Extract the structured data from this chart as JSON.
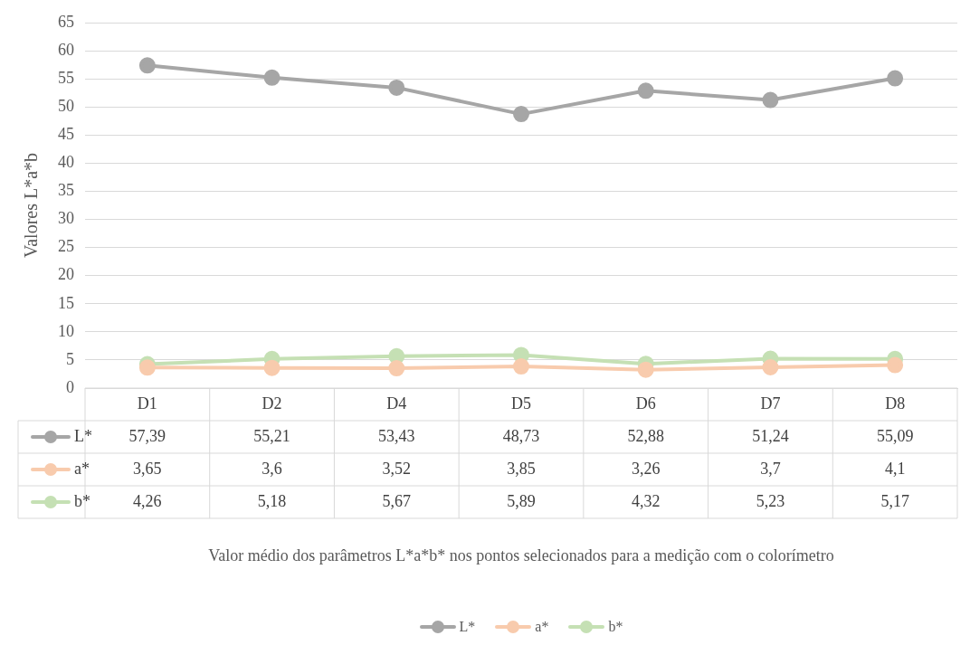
{
  "chart_data": {
    "type": "line",
    "ylabel": "Valores L*a*b",
    "annotations": [
      "Valor médio dos parâmetros L*a*b* nos pontos selecionados para a medição com o colorímetro"
    ],
    "categories": [
      "D1",
      "D2",
      "D4",
      "D5",
      "D6",
      "D7",
      "D8"
    ],
    "series": [
      {
        "name": "L*",
        "color": "#a6a6a6",
        "values": [
          57.39,
          55.21,
          53.43,
          48.73,
          52.88,
          51.24,
          55.09
        ],
        "value_labels": [
          "57,39",
          "55,21",
          "53,43",
          "48,73",
          "52,88",
          "51,24",
          "55,09"
        ]
      },
      {
        "name": "a*",
        "color": "#f8cbad",
        "values": [
          3.65,
          3.6,
          3.52,
          3.85,
          3.26,
          3.7,
          4.1
        ],
        "value_labels": [
          "3,65",
          "3,6",
          "3,52",
          "3,85",
          "3,26",
          "3,7",
          "4,1"
        ]
      },
      {
        "name": "b*",
        "color": "#c5e0b4",
        "values": [
          4.26,
          5.18,
          5.67,
          5.89,
          4.32,
          5.23,
          5.17
        ],
        "value_labels": [
          "4,26",
          "5,18",
          "5,67",
          "5,89",
          "4,32",
          "5,23",
          "5,17"
        ]
      }
    ],
    "ylim": [
      0,
      65
    ],
    "yticks": [
      0,
      5,
      10,
      15,
      20,
      25,
      30,
      35,
      40,
      45,
      50,
      55,
      60,
      65
    ],
    "grid": "y",
    "marker": "circle",
    "line_style": "solid",
    "legend": "bottom"
  }
}
